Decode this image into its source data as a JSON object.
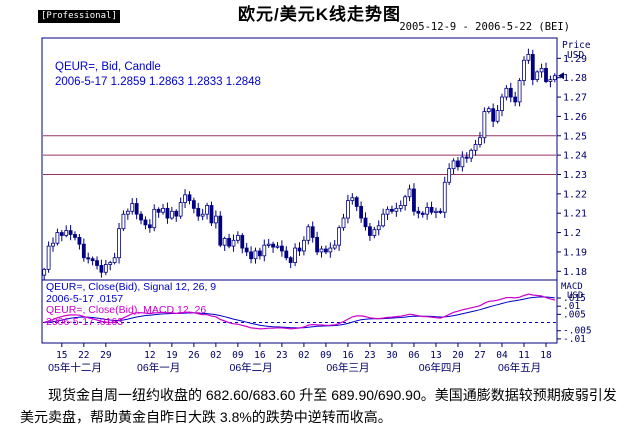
{
  "header": {
    "badge": "[Professional]",
    "title": "欧元/美元K线走势图",
    "date_range": "2005-12-9 - 2006-5-22 (BEI)"
  },
  "price_panel": {
    "legend_line1": "QEUR=, Bid, Candle",
    "legend_line2": "2006-5-17 1.2859 1.2863 1.2833 1.2848",
    "axis_label_1": "Price",
    "axis_label_2": "USD"
  },
  "macd_panel": {
    "legend_signal_name": "QEUR=, Close(Bid), Signal 12, 26, 9",
    "legend_signal_value": "2006-5-17 .0157",
    "legend_macd_name": "QEUR=, Close(Bid), MACD 12, 26",
    "legend_macd_value": "2006-5-17 .0163",
    "axis_label_1": "MACD",
    "axis_label_2": "USD"
  },
  "footer": {
    "commentary": "现货金自周一纽约收盘的 682.60/683.60 升至 689.90/690.90。美国通膨数据较预期疲弱引发美元卖盘，帮助黄金自昨日大跌 3.8%的跌势中逆转而收高。"
  },
  "chart_data": {
    "type": "candlestick",
    "title": "欧元/美元K线走势图",
    "symbol": "QEUR=, Bid",
    "date_range": [
      "2005-12-9",
      "2006-5-22"
    ],
    "last_quote": {
      "date": "2006-5-17",
      "open": 1.2859,
      "high": 1.2863,
      "low": 1.2833,
      "close": 1.2848
    },
    "indicators": {
      "signal_12_26_9": {
        "date": "2006-5-17",
        "value": 0.0157
      },
      "macd_12_26": {
        "date": "2006-5-17",
        "value": 0.0163
      }
    },
    "price_axis": {
      "label": "Price USD",
      "min": 1.1755,
      "max": 1.3005,
      "ticks": [
        "1.29",
        "1.28",
        "1.27",
        "1.26",
        "1.25",
        "1.24",
        "1.23",
        "1.22",
        "1.21",
        "1.2",
        "1.19",
        "1.18"
      ]
    },
    "hlines": {
      "color": "#993366",
      "values": [
        1.25,
        1.24,
        1.23
      ]
    },
    "macd_axis": {
      "label": "MACD USD",
      "min": -0.0125,
      "max": 0.026,
      "ticks": [
        ".015",
        ".01",
        ".005",
        "-.005",
        "-.01"
      ],
      "zero_line": 0
    },
    "x_ticks": [
      {
        "label": "15",
        "index": 4
      },
      {
        "label": "22",
        "index": 9
      },
      {
        "label": "29",
        "index": 14
      },
      {
        "label": "12",
        "index": 24
      },
      {
        "label": "19",
        "index": 29
      },
      {
        "label": "26",
        "index": 34
      },
      {
        "label": "02",
        "index": 39
      },
      {
        "label": "09",
        "index": 44
      },
      {
        "label": "16",
        "index": 49
      },
      {
        "label": "23",
        "index": 54
      },
      {
        "label": "02",
        "index": 59
      },
      {
        "label": "09",
        "index": 64
      },
      {
        "label": "16",
        "index": 69
      },
      {
        "label": "23",
        "index": 74
      },
      {
        "label": "30",
        "index": 79
      },
      {
        "label": "06",
        "index": 84
      },
      {
        "label": "13",
        "index": 89
      },
      {
        "label": "20",
        "index": 94
      },
      {
        "label": "27",
        "index": 99
      },
      {
        "label": "04",
        "index": 104
      },
      {
        "label": "11",
        "index": 109
      },
      {
        "label": "18",
        "index": 114
      }
    ],
    "month_labels": [
      {
        "label": "05年十二月",
        "index": 7
      },
      {
        "label": "06年一月",
        "index": 26
      },
      {
        "label": "06年二月",
        "index": 47
      },
      {
        "label": "06年三月",
        "index": 69
      },
      {
        "label": "06年四月",
        "index": 90
      },
      {
        "label": "06年五月",
        "index": 108
      }
    ],
    "first_open": 1.178,
    "closes": [
      1.181,
      1.193,
      1.1945,
      1.2,
      1.1985,
      1.201,
      1.199,
      1.1975,
      1.194,
      1.187,
      1.1865,
      1.1855,
      1.183,
      1.1795,
      1.1835,
      1.1845,
      1.187,
      1.202,
      1.2095,
      1.211,
      1.215,
      1.2095,
      1.2065,
      1.204,
      1.2025,
      1.212,
      1.2105,
      1.2125,
      1.2075,
      1.211,
      1.2085,
      1.2155,
      1.2195,
      1.2165,
      1.2125,
      1.2085,
      1.2095,
      1.214,
      1.205,
      1.2085,
      1.1935,
      1.197,
      1.193,
      1.196,
      1.1985,
      1.192,
      1.19,
      1.1865,
      1.1905,
      1.188,
      1.1935,
      1.194,
      1.1925,
      1.193,
      1.1905,
      1.187,
      1.1845,
      1.192,
      1.1905,
      1.196,
      1.203,
      1.1975,
      1.19,
      1.1915,
      1.19,
      1.192,
      1.1935,
      1.2025,
      1.2075,
      1.2165,
      1.218,
      1.2135,
      1.2075,
      1.203,
      1.1985,
      1.2015,
      1.2035,
      1.2095,
      1.212,
      1.211,
      1.2125,
      1.214,
      1.2185,
      1.2225,
      1.211,
      1.21,
      1.2095,
      1.213,
      1.2105,
      1.211,
      1.2105,
      1.226,
      1.233,
      1.237,
      1.234,
      1.239,
      1.2385,
      1.2425,
      1.2455,
      1.249,
      1.2625,
      1.264,
      1.2575,
      1.263,
      1.27,
      1.2745,
      1.27,
      1.2675,
      1.2785,
      1.289,
      1.292,
      1.279,
      1.283,
      1.2848,
      1.278,
      1.279,
      1.281
    ],
    "series": [
      {
        "name": "MACD 12, 26",
        "color": "#cc00cc",
        "derived_from": "ema12(closes) - ema26(closes)"
      },
      {
        "name": "Signal 12, 26, 9",
        "color": "#0000cc",
        "derived_from": "ema9(macd)"
      }
    ],
    "colors": {
      "candle": "#000080",
      "axis_text": "#000066",
      "macd_line": "#cc00cc",
      "signal_line": "#0000cc",
      "zero_line": "#0000cc"
    }
  }
}
